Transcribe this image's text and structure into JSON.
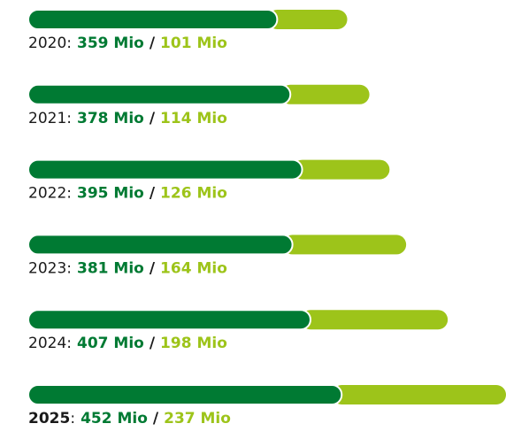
{
  "chart_data": {
    "type": "bar",
    "orientation": "horizontal",
    "stacked": true,
    "categories": [
      "2020",
      "2021",
      "2022",
      "2023",
      "2024",
      "2025"
    ],
    "category_suffix": ":",
    "separator": "/",
    "series": [
      {
        "color": "#007a33",
        "values": [
          359,
          378,
          395,
          381,
          407,
          452
        ],
        "value_labels": [
          "359 Mio",
          "378 Mio",
          "395 Mio",
          "381 Mio",
          "407 Mio",
          "452 Mio"
        ]
      },
      {
        "color": "#9dc41a",
        "values": [
          101,
          114,
          126,
          164,
          198,
          237
        ],
        "value_labels": [
          "101 Mio",
          "114 Mio",
          "126 Mio",
          "164 Mio",
          "198 Mio",
          "237 Mio"
        ]
      }
    ]
  }
}
